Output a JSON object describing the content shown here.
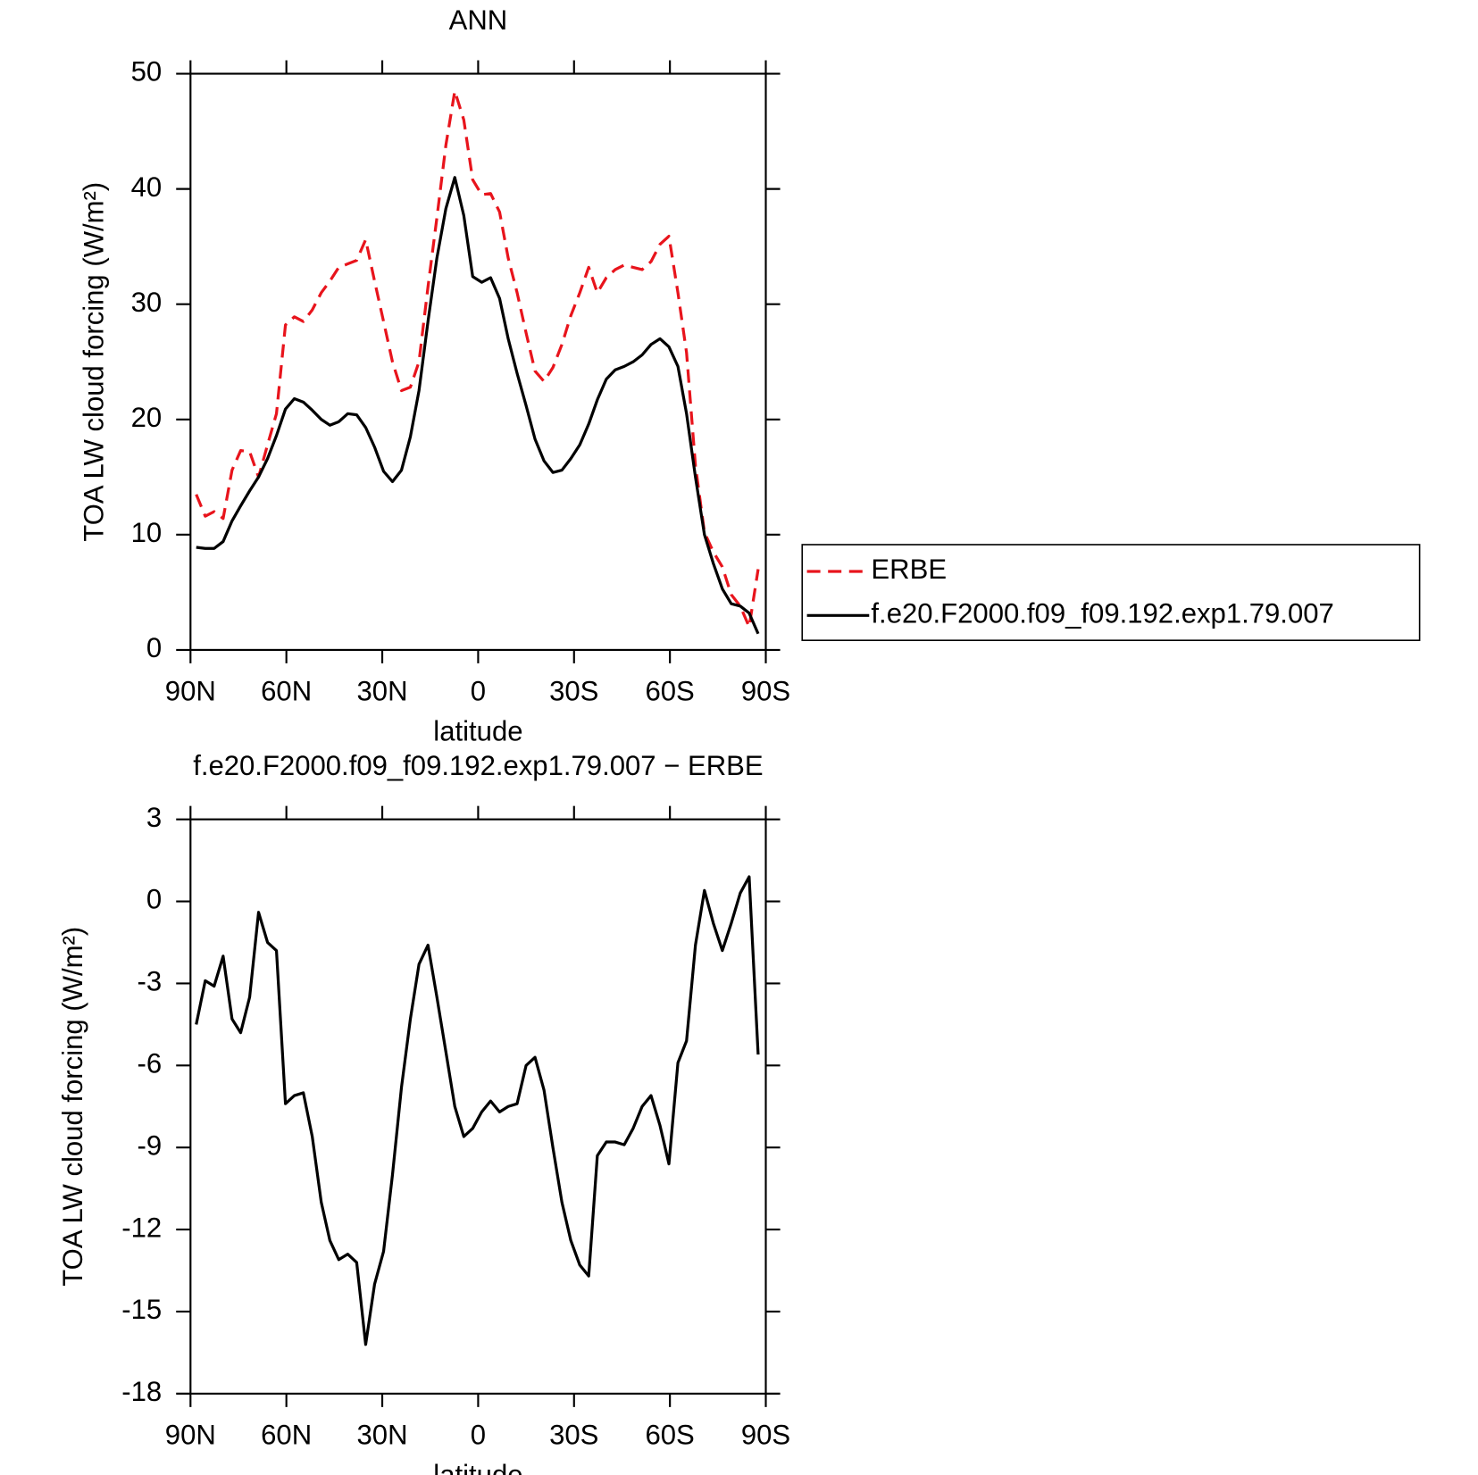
{
  "chart_data": [
    {
      "type": "line",
      "title": "ANN",
      "xlabel": "latitude",
      "ylabel": "TOA LW cloud forcing (W/m²)",
      "xlim": [
        90,
        -90
      ],
      "xticks": [
        {
          "value": 90,
          "label": "90N"
        },
        {
          "value": 60,
          "label": "60N"
        },
        {
          "value": 30,
          "label": "30N"
        },
        0,
        {
          "value": -30,
          "label": "30S"
        },
        {
          "value": -60,
          "label": "60S"
        },
        {
          "value": -90,
          "label": "90S"
        }
      ],
      "ylim": [
        0,
        50
      ],
      "yticks": [
        0,
        10,
        20,
        30,
        40,
        50
      ],
      "legend": "right",
      "x": [
        88.2,
        85.4,
        82.6,
        79.8,
        77.0,
        74.3,
        71.5,
        68.7,
        65.9,
        63.1,
        60.3,
        57.5,
        54.7,
        51.9,
        49.1,
        46.4,
        43.6,
        40.8,
        38.0,
        35.2,
        32.4,
        29.6,
        26.8,
        24.0,
        21.2,
        18.5,
        15.7,
        12.9,
        10.1,
        7.3,
        4.5,
        1.7,
        -1.1,
        -3.9,
        -6.7,
        -9.4,
        -12.2,
        -15.0,
        -17.8,
        -20.6,
        -23.4,
        -26.2,
        -29.0,
        -31.8,
        -34.6,
        -37.3,
        -40.1,
        -42.9,
        -45.7,
        -48.5,
        -51.3,
        -54.1,
        -56.9,
        -59.7,
        -62.5,
        -65.2,
        -68.0,
        -70.8,
        -73.6,
        -76.4,
        -79.2,
        -82.0,
        -84.8,
        -87.6
      ],
      "series": [
        {
          "name": "ERBE",
          "color": "#e8141c",
          "linestyle": "dashed",
          "values": [
            13.5,
            11.6,
            12.0,
            11.4,
            15.6,
            17.3,
            17.2,
            15.0,
            17.8,
            20.5,
            28.2,
            28.9,
            28.5,
            29.5,
            31.0,
            32.0,
            33.2,
            33.5,
            33.8,
            35.6,
            32.0,
            28.5,
            25.0,
            22.5,
            22.8,
            25.0,
            31.5,
            37.5,
            43.8,
            48.5,
            46.0,
            40.8,
            39.5,
            39.6,
            38.0,
            34.0,
            31.0,
            27.5,
            24.2,
            23.3,
            24.5,
            26.5,
            29.0,
            31.0,
            33.2,
            31.0,
            32.3,
            33.0,
            33.4,
            33.2,
            33.0,
            33.7,
            35.2,
            35.9,
            31.0,
            25.8,
            16.0,
            10.2,
            8.5,
            7.2,
            4.8,
            3.8,
            2.0,
            7.0
          ]
        },
        {
          "name": "f.e20.F2000.f09_f09.192.exp1.79.007",
          "color": "#000000",
          "linestyle": "solid",
          "values": [
            8.9,
            8.8,
            8.8,
            9.4,
            11.2,
            12.5,
            13.8,
            15.0,
            16.6,
            18.6,
            20.9,
            21.8,
            21.5,
            20.8,
            20.0,
            19.5,
            19.8,
            20.5,
            20.4,
            19.3,
            17.6,
            15.5,
            14.6,
            15.6,
            18.5,
            22.5,
            28.5,
            34.0,
            38.3,
            41.0,
            37.7,
            32.4,
            31.9,
            32.3,
            30.5,
            27.0,
            24.0,
            21.2,
            18.3,
            16.4,
            15.4,
            15.6,
            16.6,
            17.8,
            19.6,
            21.7,
            23.5,
            24.3,
            24.6,
            25.0,
            25.6,
            26.5,
            27.0,
            26.3,
            24.6,
            20.5,
            15.0,
            10.0,
            7.5,
            5.3,
            4.0,
            3.8,
            3.2,
            1.4
          ]
        }
      ]
    },
    {
      "type": "line",
      "title": "f.e20.F2000.f09_f09.192.exp1.79.007 − ERBE",
      "xlabel": "latitude",
      "ylabel": "TOA LW cloud forcing (W/m²)",
      "xlim": [
        90,
        -90
      ],
      "xticks": [
        {
          "value": 90,
          "label": "90N"
        },
        {
          "value": 60,
          "label": "60N"
        },
        {
          "value": 30,
          "label": "30N"
        },
        0,
        {
          "value": -30,
          "label": "30S"
        },
        {
          "value": -60,
          "label": "60S"
        },
        {
          "value": -90,
          "label": "90S"
        }
      ],
      "ylim": [
        -18,
        3
      ],
      "yticks": [
        -18,
        -15,
        -12,
        -9,
        -6,
        -3,
        0,
        3
      ],
      "x": [
        88.2,
        85.4,
        82.6,
        79.8,
        77.0,
        74.3,
        71.5,
        68.7,
        65.9,
        63.1,
        60.3,
        57.5,
        54.7,
        51.9,
        49.1,
        46.4,
        43.6,
        40.8,
        38.0,
        35.2,
        32.4,
        29.6,
        26.8,
        24.0,
        21.2,
        18.5,
        15.7,
        12.9,
        10.1,
        7.3,
        4.5,
        1.7,
        -1.1,
        -3.9,
        -6.7,
        -9.4,
        -12.2,
        -15.0,
        -17.8,
        -20.6,
        -23.4,
        -26.2,
        -29.0,
        -31.8,
        -34.6,
        -37.3,
        -40.1,
        -42.9,
        -45.7,
        -48.5,
        -51.3,
        -54.1,
        -56.9,
        -59.7,
        -62.5,
        -65.2,
        -68.0,
        -70.8,
        -73.6,
        -76.4,
        -79.2,
        -82.0,
        -84.8,
        -87.6
      ],
      "series": [
        {
          "color": "#000000",
          "linestyle": "solid",
          "values": [
            -4.5,
            -2.9,
            -3.1,
            -2.0,
            -4.3,
            -4.8,
            -3.5,
            -0.4,
            -1.5,
            -1.8,
            -7.4,
            -7.1,
            -7.0,
            -8.6,
            -11.0,
            -12.4,
            -13.1,
            -12.9,
            -13.2,
            -16.2,
            -14.0,
            -12.8,
            -10.0,
            -6.8,
            -4.3,
            -2.3,
            -1.6,
            -3.5,
            -5.5,
            -7.5,
            -8.6,
            -8.3,
            -7.7,
            -7.3,
            -7.7,
            -7.5,
            -7.4,
            -6.0,
            -5.7,
            -6.9,
            -9.0,
            -11.0,
            -12.4,
            -13.3,
            -13.7,
            -9.3,
            -8.8,
            -8.8,
            -8.9,
            -8.3,
            -7.5,
            -7.1,
            -8.2,
            -9.6,
            -5.9,
            -5.1,
            -1.6,
            0.4,
            -0.8,
            -1.8,
            -0.8,
            0.3,
            0.9,
            -5.6
          ]
        }
      ]
    }
  ]
}
